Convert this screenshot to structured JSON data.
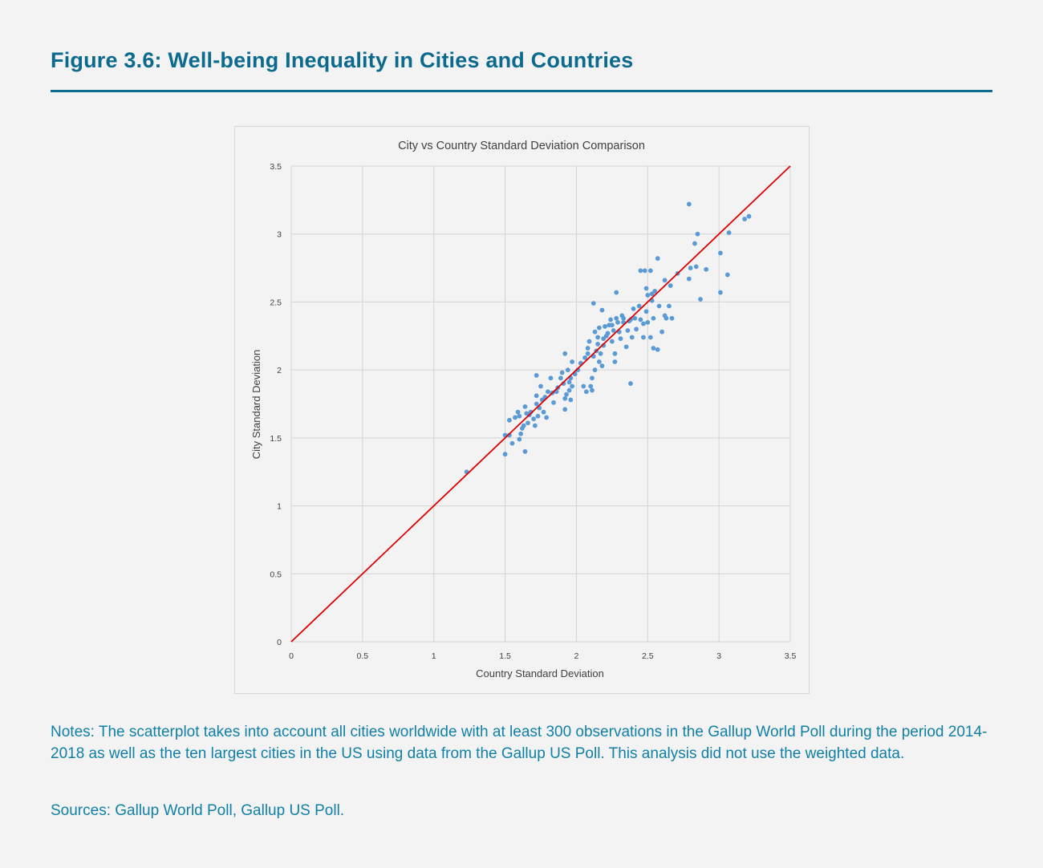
{
  "figure_title": "Figure 3.6: Well-being Inequality in Cities and Countries",
  "notes": "Notes: The scatterplot takes into account all cities worldwide with at least 300 observations in the Gallup World Poll during the period 2014-2018 as well as the ten largest cities in the US using data from the Gallup US Poll. This analysis did not use the weighted data.",
  "sources": "Sources: Gallup World Poll, Gallup US Poll.",
  "chart_data": {
    "type": "scatter",
    "title": "City vs Country Standard Deviation Comparison",
    "xlabel": "Country Standard Deviation",
    "ylabel": "City Standard Deviation",
    "xlim": [
      0,
      3.5
    ],
    "ylim": [
      0,
      3.5
    ],
    "xticks": [
      "0",
      "0.5",
      "1",
      "1.5",
      "2",
      "2.5",
      "3",
      "3.5"
    ],
    "yticks": [
      "0",
      "0.5",
      "1",
      "1.5",
      "2",
      "2.5",
      "3",
      "3.5"
    ],
    "grid": true,
    "point_color": "#5b9bd5",
    "reference_line": {
      "from": [
        0,
        0
      ],
      "to": [
        3.5,
        3.5
      ],
      "color": "#e00000"
    },
    "points": [
      [
        1.23,
        1.25
      ],
      [
        1.5,
        1.38
      ],
      [
        1.5,
        1.52
      ],
      [
        1.53,
        1.52
      ],
      [
        1.53,
        1.63
      ],
      [
        1.55,
        1.46
      ],
      [
        1.59,
        1.69
      ],
      [
        1.6,
        1.66
      ],
      [
        1.61,
        1.53
      ],
      [
        1.6,
        1.49
      ],
      [
        1.63,
        1.59
      ],
      [
        1.64,
        1.4
      ],
      [
        1.65,
        1.68
      ],
      [
        1.64,
        1.73
      ],
      [
        1.66,
        1.61
      ],
      [
        1.68,
        1.69
      ],
      [
        1.7,
        1.64
      ],
      [
        1.71,
        1.59
      ],
      [
        1.72,
        1.75
      ],
      [
        1.72,
        1.96
      ],
      [
        1.72,
        1.81
      ],
      [
        1.73,
        1.66
      ],
      [
        1.75,
        1.88
      ],
      [
        1.76,
        1.78
      ],
      [
        1.77,
        1.69
      ],
      [
        1.79,
        1.65
      ],
      [
        1.8,
        1.84
      ],
      [
        1.82,
        1.94
      ],
      [
        1.84,
        1.76
      ],
      [
        1.86,
        1.84
      ],
      [
        1.89,
        1.94
      ],
      [
        1.9,
        1.98
      ],
      [
        1.91,
        1.9
      ],
      [
        1.92,
        1.71
      ],
      [
        1.92,
        2.12
      ],
      [
        1.92,
        1.79
      ],
      [
        1.94,
        2.0
      ],
      [
        1.95,
        1.85
      ],
      [
        1.96,
        1.94
      ],
      [
        1.96,
        1.78
      ],
      [
        1.97,
        2.06
      ],
      [
        1.97,
        1.88
      ],
      [
        2.01,
        2.0
      ],
      [
        2.05,
        1.88
      ],
      [
        2.06,
        2.09
      ],
      [
        2.07,
        1.84
      ],
      [
        2.08,
        2.12
      ],
      [
        2.09,
        2.21
      ],
      [
        2.1,
        1.88
      ],
      [
        2.11,
        1.85
      ],
      [
        2.11,
        1.94
      ],
      [
        2.12,
        2.49
      ],
      [
        2.13,
        2.28
      ],
      [
        2.13,
        2.0
      ],
      [
        2.14,
        2.14
      ],
      [
        2.15,
        2.24
      ],
      [
        2.16,
        2.31
      ],
      [
        2.16,
        2.06
      ],
      [
        2.17,
        2.12
      ],
      [
        2.18,
        2.44
      ],
      [
        2.18,
        2.03
      ],
      [
        2.19,
        2.18
      ],
      [
        2.2,
        2.32
      ],
      [
        2.21,
        2.25
      ],
      [
        2.23,
        2.33
      ],
      [
        2.24,
        2.37
      ],
      [
        2.25,
        2.21
      ],
      [
        2.26,
        2.29
      ],
      [
        2.27,
        2.12
      ],
      [
        2.27,
        2.06
      ],
      [
        2.28,
        2.57
      ],
      [
        2.28,
        2.38
      ],
      [
        2.3,
        2.28
      ],
      [
        2.31,
        2.23
      ],
      [
        2.32,
        2.4
      ],
      [
        2.33,
        2.35
      ],
      [
        2.35,
        2.17
      ],
      [
        2.36,
        2.29
      ],
      [
        2.38,
        2.37
      ],
      [
        2.38,
        1.9
      ],
      [
        2.39,
        2.24
      ],
      [
        2.4,
        2.45
      ],
      [
        2.41,
        2.38
      ],
      [
        2.42,
        2.3
      ],
      [
        2.44,
        2.47
      ],
      [
        2.45,
        2.37
      ],
      [
        2.45,
        2.73
      ],
      [
        2.47,
        2.34
      ],
      [
        2.47,
        2.24
      ],
      [
        2.48,
        2.73
      ],
      [
        2.49,
        2.43
      ],
      [
        2.49,
        2.6
      ],
      [
        2.5,
        2.55
      ],
      [
        2.5,
        2.35
      ],
      [
        2.52,
        2.24
      ],
      [
        2.52,
        2.73
      ],
      [
        2.53,
        2.51
      ],
      [
        2.53,
        2.56
      ],
      [
        2.54,
        2.38
      ],
      [
        2.54,
        2.16
      ],
      [
        2.55,
        2.58
      ],
      [
        2.57,
        2.82
      ],
      [
        2.57,
        2.15
      ],
      [
        2.58,
        2.47
      ],
      [
        2.6,
        2.28
      ],
      [
        2.62,
        2.4
      ],
      [
        2.62,
        2.66
      ],
      [
        2.63,
        2.38
      ],
      [
        2.65,
        2.47
      ],
      [
        2.66,
        2.62
      ],
      [
        2.67,
        2.38
      ],
      [
        2.71,
        2.71
      ],
      [
        2.79,
        3.22
      ],
      [
        2.79,
        2.67
      ],
      [
        2.8,
        2.75
      ],
      [
        2.83,
        2.93
      ],
      [
        2.85,
        3.0
      ],
      [
        2.84,
        2.76
      ],
      [
        2.87,
        2.52
      ],
      [
        2.91,
        2.74
      ],
      [
        3.01,
        2.86
      ],
      [
        3.01,
        2.57
      ],
      [
        3.06,
        2.7
      ],
      [
        3.07,
        3.01
      ],
      [
        3.18,
        3.11
      ],
      [
        3.21,
        3.13
      ],
      [
        1.57,
        1.65
      ],
      [
        1.62,
        1.57
      ],
      [
        1.67,
        1.67
      ],
      [
        1.74,
        1.72
      ],
      [
        1.78,
        1.8
      ],
      [
        1.83,
        1.83
      ],
      [
        1.87,
        1.87
      ],
      [
        1.93,
        1.82
      ],
      [
        1.95,
        1.91
      ],
      [
        1.99,
        1.97
      ],
      [
        2.03,
        2.05
      ],
      [
        2.08,
        2.16
      ],
      [
        2.12,
        2.1
      ],
      [
        2.15,
        2.19
      ],
      [
        2.19,
        2.23
      ],
      [
        2.22,
        2.27
      ],
      [
        2.25,
        2.33
      ],
      [
        2.29,
        2.35
      ],
      [
        2.33,
        2.38
      ],
      [
        2.37,
        2.36
      ]
    ]
  }
}
